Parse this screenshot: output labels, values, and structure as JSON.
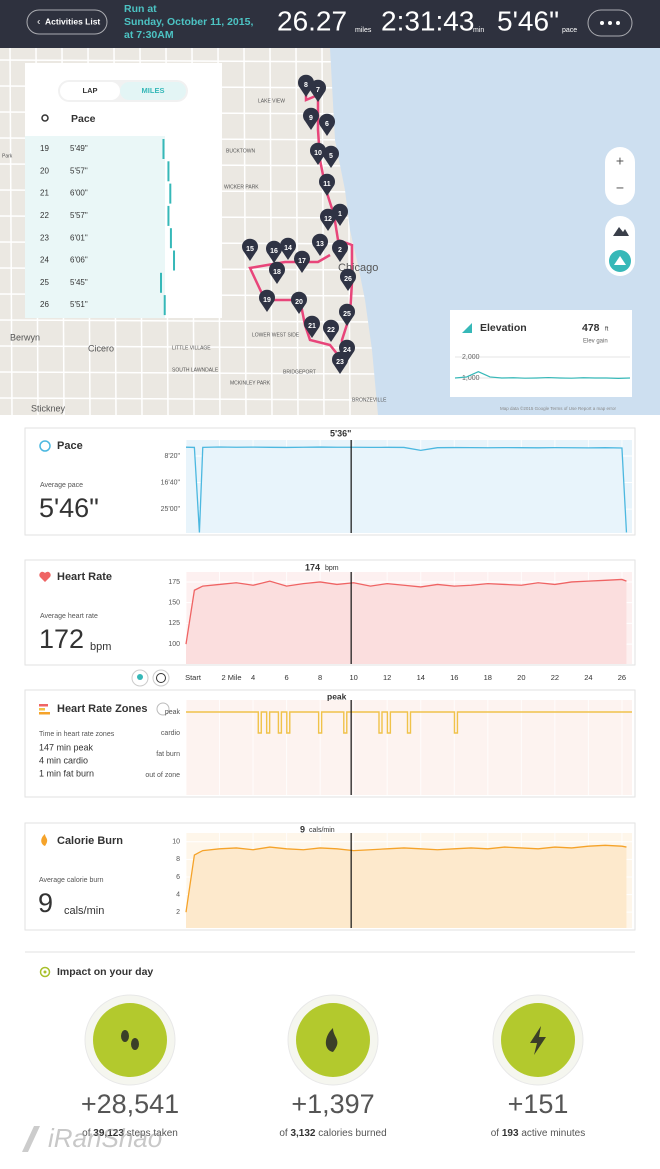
{
  "header": {
    "back": "Activities List",
    "run_at": "Run at",
    "date": "Sunday, October 11, 2015,",
    "time": "at 7:30AM",
    "distance": "26.27",
    "distance_unit": "miles",
    "duration": "2:31:43",
    "duration_unit": "min",
    "pace": "5'46\"",
    "pace_unit": "pace"
  },
  "map": {
    "tabs": [
      "LAP",
      "MILES"
    ],
    "column": "Pace",
    "laps": [
      [
        "19",
        "5'49\""
      ],
      [
        "20",
        "5'57\""
      ],
      [
        "21",
        "6'00\""
      ],
      [
        "22",
        "5'57\""
      ],
      [
        "23",
        "6'01\""
      ],
      [
        "24",
        "6'06\""
      ],
      [
        "25",
        "5'45\""
      ],
      [
        "26",
        "5'51\""
      ]
    ],
    "markers": [
      "8",
      "7",
      "9",
      "6",
      "10",
      "5",
      "11",
      "1",
      "12",
      "13",
      "2",
      "14",
      "16",
      "15",
      "17",
      "18",
      "26",
      "19",
      "20",
      "25",
      "21",
      "22",
      "24",
      "23"
    ],
    "places": [
      "Chicago",
      "Berwyn",
      "Cicero",
      "Stickney",
      "LAKE VIEW",
      "BUCKTOWN",
      "WICKER PARK",
      "LITTLE VILLAGE",
      "SOUTH LAWNDALE",
      "BRIDGEPORT",
      "MCKINLEY PARK",
      "BRONZEVILLE",
      "Park",
      "LOWER WEST SIDE"
    ],
    "attribution": "Map data ©2015 Google   Terms of Use   Report a map error",
    "zoom": [
      "+",
      "−"
    ],
    "elevation": {
      "title": "Elevation",
      "gain": "478",
      "gain_unit": "ft",
      "gain_label": "Elev gain",
      "ylim": [
        190,
        2570
      ],
      "yticks": [
        {
          "value": 2000,
          "label": "2,000"
        },
        {
          "value": 1000,
          "label": "1,000"
        }
      ],
      "values": [
        1000,
        1050,
        1300,
        1050,
        1000,
        1010,
        990,
        1000,
        1020,
        1000,
        990,
        1010,
        1000,
        1000,
        980,
        1000
      ]
    }
  },
  "charts": {
    "x": [
      0,
      0.5,
      0.8,
      1,
      2,
      3,
      4,
      5,
      6,
      7,
      8,
      9,
      10,
      11,
      12,
      13,
      14,
      15,
      16,
      17,
      18,
      19,
      20,
      21,
      22,
      23,
      24,
      25,
      26,
      26.27
    ],
    "xlim": [
      0,
      26.6
    ],
    "xticks": [
      {
        "value": 0,
        "label": "Start"
      },
      {
        "value": 2,
        "label": "2 Mile"
      },
      4,
      6,
      8,
      10,
      12,
      14,
      16,
      18,
      20,
      22,
      24,
      26
    ],
    "cursor_x": 9.85,
    "pace": {
      "title": "Pace",
      "average_label": "Average pace",
      "average": "5'46\"",
      "cursor_label": "5'36\"",
      "color": "#4cb8e0",
      "ylim": [
        200,
        1950
      ],
      "inverted": true,
      "yticks": [
        {
          "value": 500,
          "label": "8'20\""
        },
        {
          "value": 1000,
          "label": "16'40\""
        },
        {
          "value": 1500,
          "label": "25'00\""
        }
      ],
      "values": [
        335,
        340,
        1940,
        338,
        332,
        336,
        334,
        338,
        340,
        336,
        333,
        337,
        336,
        339,
        338,
        340,
        395,
        345,
        342,
        344,
        346,
        343,
        345,
        347,
        344,
        346,
        348,
        345,
        350,
        1940
      ]
    },
    "heart_rate": {
      "title": "Heart Rate",
      "average_label": "Average heart rate",
      "average": "172",
      "unit": "bpm",
      "cursor_value": "174",
      "cursor_unit": "bpm",
      "color": "#ef6464",
      "ylim": [
        76,
        187
      ],
      "yticks": [
        175,
        150,
        125,
        100
      ],
      "values": [
        100,
        165,
        168,
        170,
        172,
        174,
        171,
        176,
        170,
        173,
        175,
        172,
        174,
        170,
        173,
        171,
        169,
        172,
        170,
        171,
        173,
        172,
        171,
        174,
        172,
        175,
        176,
        177,
        178,
        176
      ]
    },
    "zones": {
      "title": "Heart Rate Zones",
      "summary_label": "Time in heart rate zones",
      "summary": [
        "147 min peak",
        "4 min cardio",
        "1 min fat burn"
      ],
      "zones": [
        "peak",
        "cardio",
        "fat burn",
        "out of zone"
      ],
      "cursor_label": "peak",
      "color": "#f0c24a",
      "cardio_dips_x": [
        4.4,
        4.9,
        5.6,
        6.1,
        8,
        9.5,
        11.6,
        12.1,
        13.3,
        16.1
      ]
    },
    "calories": {
      "title": "Calorie Burn",
      "average_label": "Average calorie burn",
      "average": "9",
      "unit": "cals/min",
      "cursor_value": "9",
      "cursor_unit": "cals/min",
      "color": "#f5a32a",
      "ylim": [
        0.2,
        11
      ],
      "yticks": [
        10,
        8,
        6,
        4,
        2
      ],
      "values": [
        2,
        8.5,
        8.8,
        9,
        9.2,
        9.3,
        9.1,
        9.4,
        9.2,
        9.1,
        9.3,
        9.2,
        9,
        9.1,
        9.2,
        9.3,
        9.2,
        9.1,
        9.2,
        9.3,
        9.2,
        9.4,
        9.3,
        9.2,
        9.4,
        9.3,
        9.5,
        9.6,
        9.5,
        9.4
      ]
    }
  },
  "impact": {
    "title": "Impact on your day",
    "items": [
      {
        "delta": "+28,541",
        "of": "of",
        "total": "39,123",
        "label": "steps taken"
      },
      {
        "delta": "+1,397",
        "of": "of",
        "total": "3,132",
        "label": "calories burned"
      },
      {
        "delta": "+151",
        "of": "of",
        "total": "193",
        "label": "active minutes"
      }
    ]
  },
  "watermark": "iRanShao"
}
